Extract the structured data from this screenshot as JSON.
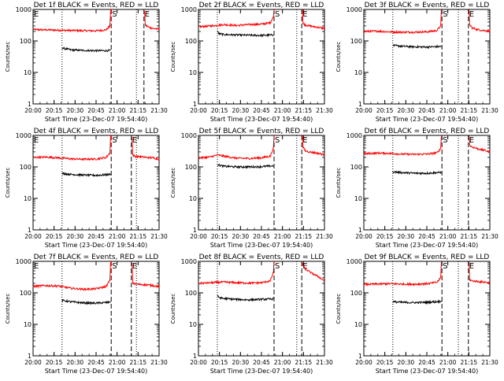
{
  "figure": {
    "axis_labels": {
      "y": "Counts/sec",
      "x": "Start Time (23-Dec-07 19:54:40)"
    },
    "colors": {
      "events": "#000000",
      "lld": "#ff0000",
      "axes": "#000000"
    },
    "legend_note": "BLACK = Events, RED = LLD",
    "markers": {
      "saa": "S",
      "eclipse": "E"
    }
  },
  "chart_data": [
    {
      "type": "line",
      "title": "Det 1f BLACK = Events, RED = LLD",
      "xlabel": "Start Time (23-Dec-07 19:54:40)",
      "ylabel": "Counts/sec",
      "scale": "log",
      "ylim": [
        1,
        1000
      ],
      "xlim_min": [
        0,
        100
      ],
      "x_ticks": [
        "20:00",
        "20:15",
        "20:30",
        "20:45",
        "21:00",
        "21:15",
        "21:30"
      ],
      "y_ticks": [
        "1",
        "10",
        "100",
        "1000"
      ],
      "dotted_lines_min": [
        23,
        82
      ],
      "dashed_lines_min": [
        62,
        88
      ],
      "letters": [
        {
          "text": "E",
          "x": 0
        },
        {
          "text": "S",
          "x": 62
        },
        {
          "text": "E",
          "x": 88
        }
      ],
      "series": [
        {
          "name": "LLD",
          "color": "#ff0000",
          "x": [
            0,
            10,
            20,
            30,
            40,
            50,
            58,
            61,
            61.5,
            62
          ],
          "y": [
            230,
            225,
            220,
            215,
            212,
            210,
            225,
            300,
            900,
            1050
          ]
        },
        {
          "name": "LLD",
          "color": "#ff0000",
          "x": [
            88.5,
            89,
            90,
            92,
            95,
            100
          ],
          "y": [
            900,
            330,
            300,
            270,
            250,
            235
          ]
        },
        {
          "name": "Events",
          "color": "#000000",
          "x": [
            23,
            30,
            40,
            50,
            60,
            61.5
          ],
          "y": [
            60,
            52,
            50,
            49,
            49,
            50
          ]
        }
      ]
    },
    {
      "type": "line",
      "title": "Det 2f BLACK = Events, RED = LLD",
      "xlabel": "Start Time (23-Dec-07 19:54:40)",
      "ylabel": "Counts/sec",
      "scale": "log",
      "ylim": [
        1,
        1000
      ],
      "xlim_min": [
        0,
        100
      ],
      "x_ticks": [
        "20:00",
        "20:15",
        "20:30",
        "20:45",
        "21:00",
        "21:15",
        "21:30"
      ],
      "y_ticks": [
        "1",
        "10",
        "100",
        "1000"
      ],
      "dotted_lines_min": [
        15,
        78
      ],
      "dashed_lines_min": [
        60,
        82
      ],
      "letters": [
        {
          "text": "S",
          "x": 60
        },
        {
          "text": "E",
          "x": 82
        }
      ],
      "series": [
        {
          "name": "LLD",
          "color": "#ff0000",
          "x": [
            0,
            10,
            20,
            30,
            40,
            50,
            57,
            59.5,
            60
          ],
          "y": [
            280,
            300,
            330,
            310,
            330,
            340,
            380,
            600,
            1050
          ]
        },
        {
          "name": "LLD",
          "color": "#ff0000",
          "x": [
            82.5,
            83,
            85,
            90,
            95,
            100
          ],
          "y": [
            1000,
            360,
            320,
            290,
            270,
            250
          ]
        },
        {
          "name": "Events",
          "color": "#000000",
          "x": [
            15,
            16,
            20,
            30,
            40,
            50,
            59.5
          ],
          "y": [
            210,
            170,
            160,
            155,
            152,
            150,
            155
          ]
        }
      ]
    },
    {
      "type": "line",
      "title": "Det 3f BLACK = Events, RED = LLD",
      "xlabel": "Start Time (23-Dec-07 19:54:40)",
      "ylabel": "Counts/sec",
      "scale": "log",
      "ylim": [
        1,
        1000
      ],
      "xlim_min": [
        0,
        100
      ],
      "x_ticks": [
        "20:00",
        "20:15",
        "20:30",
        "20:45",
        "21:00",
        "21:15",
        "21:30"
      ],
      "y_ticks": [
        "1",
        "10",
        "100",
        "1000"
      ],
      "dotted_lines_min": [
        23,
        75
      ],
      "dashed_lines_min": [
        62,
        83
      ],
      "letters": [
        {
          "text": "S",
          "x": 62
        },
        {
          "text": "E",
          "x": 83
        }
      ],
      "series": [
        {
          "name": "LLD",
          "color": "#ff0000",
          "x": [
            0,
            10,
            20,
            30,
            40,
            50,
            58,
            61,
            61.5,
            62
          ],
          "y": [
            200,
            205,
            195,
            190,
            190,
            195,
            215,
            300,
            900,
            1050
          ]
        },
        {
          "name": "LLD",
          "color": "#ff0000",
          "x": [
            83.5,
            84,
            86,
            90,
            95,
            100
          ],
          "y": [
            950,
            330,
            260,
            230,
            215,
            205
          ]
        },
        {
          "name": "Events",
          "color": "#000000",
          "x": [
            23,
            30,
            40,
            50,
            60,
            61.5
          ],
          "y": [
            72,
            68,
            65,
            64,
            66,
            68
          ]
        }
      ]
    },
    {
      "type": "line",
      "title": "Det 4f BLACK = Events, RED = LLD",
      "xlabel": "Start Time (23-Dec-07 19:54:40)",
      "ylabel": "Counts/sec",
      "scale": "log",
      "ylim": [
        1,
        1000
      ],
      "xlim_min": [
        0,
        100
      ],
      "x_ticks": [
        "20:00",
        "20:15",
        "20:30",
        "20:45",
        "21:00",
        "21:15",
        "21:30"
      ],
      "y_ticks": [
        "1",
        "10",
        "100",
        "1000"
      ],
      "dotted_lines_min": [
        23,
        82
      ],
      "dashed_lines_min": [
        62,
        78
      ],
      "letters": [
        {
          "text": "E",
          "x": 0
        },
        {
          "text": "S",
          "x": 62
        },
        {
          "text": "E",
          "x": 78
        }
      ],
      "series": [
        {
          "name": "LLD",
          "color": "#ff0000",
          "x": [
            0,
            10,
            20,
            30,
            40,
            50,
            58,
            61,
            61.5,
            62
          ],
          "y": [
            200,
            205,
            195,
            180,
            175,
            178,
            200,
            280,
            900,
            1050
          ]
        },
        {
          "name": "LLD",
          "color": "#ff0000",
          "x": [
            78.5,
            79,
            81,
            85,
            90,
            95,
            100
          ],
          "y": [
            900,
            240,
            215,
            210,
            200,
            195,
            175
          ]
        },
        {
          "name": "Events",
          "color": "#000000",
          "x": [
            23,
            30,
            40,
            50,
            60,
            61.5
          ],
          "y": [
            62,
            58,
            55,
            54,
            57,
            60
          ]
        }
      ]
    },
    {
      "type": "line",
      "title": "Det 5f BLACK = Events, RED = LLD",
      "xlabel": "Start Time (23-Dec-07 19:54:40)",
      "ylabel": "Counts/sec",
      "scale": "log",
      "ylim": [
        1,
        1000
      ],
      "xlim_min": [
        0,
        100
      ],
      "x_ticks": [
        "20:00",
        "20:15",
        "20:30",
        "20:45",
        "21:00",
        "21:15",
        "21:30"
      ],
      "y_ticks": [
        "1",
        "10",
        "100",
        "1000"
      ],
      "dotted_lines_min": [
        15,
        78
      ],
      "dashed_lines_min": [
        60,
        82
      ],
      "letters": [
        {
          "text": "S",
          "x": 60
        },
        {
          "text": "E",
          "x": 82
        }
      ],
      "series": [
        {
          "name": "LLD",
          "color": "#ff0000",
          "x": [
            0,
            10,
            15,
            20,
            30,
            40,
            50,
            57,
            59.5,
            60
          ],
          "y": [
            190,
            210,
            240,
            220,
            190,
            185,
            195,
            220,
            400,
            1050
          ]
        },
        {
          "name": "LLD",
          "color": "#ff0000",
          "x": [
            82.5,
            83,
            85,
            90,
            95,
            100
          ],
          "y": [
            1000,
            420,
            320,
            290,
            270,
            240
          ]
        },
        {
          "name": "Events",
          "color": "#000000",
          "x": [
            15,
            16,
            20,
            30,
            40,
            50,
            59.5
          ],
          "y": [
            120,
            115,
            105,
            100,
            100,
            102,
            108
          ]
        }
      ]
    },
    {
      "type": "line",
      "title": "Det 6f BLACK = Events, RED = LLD",
      "xlabel": "Start Time (23-Dec-07 19:54:40)",
      "ylabel": "Counts/sec",
      "scale": "log",
      "ylim": [
        1,
        1000
      ],
      "xlim_min": [
        0,
        100
      ],
      "x_ticks": [
        "20:00",
        "20:15",
        "20:30",
        "20:45",
        "21:00",
        "21:15",
        "21:30"
      ],
      "y_ticks": [
        "1",
        "10",
        "100",
        "1000"
      ],
      "dotted_lines_min": [
        23,
        75
      ],
      "dashed_lines_min": [
        62,
        83
      ],
      "letters": [
        {
          "text": "S",
          "x": 62
        },
        {
          "text": "E",
          "x": 83
        }
      ],
      "series": [
        {
          "name": "LLD",
          "color": "#ff0000",
          "x": [
            0,
            10,
            20,
            30,
            40,
            50,
            58,
            61,
            61.5,
            62
          ],
          "y": [
            260,
            275,
            270,
            255,
            250,
            255,
            280,
            380,
            900,
            1050
          ]
        },
        {
          "name": "LLD",
          "color": "#ff0000",
          "x": [
            83.5,
            84,
            86,
            90,
            95,
            100
          ],
          "y": [
            900,
            480,
            430,
            380,
            340,
            300
          ]
        },
        {
          "name": "Events",
          "color": "#000000",
          "x": [
            23,
            30,
            40,
            50,
            60,
            61.5
          ],
          "y": [
            70,
            66,
            63,
            63,
            66,
            68
          ]
        }
      ]
    },
    {
      "type": "line",
      "title": "Det 7f BLACK = Events, RED = LLD",
      "xlabel": "Start Time (23-Dec-07 19:54:40)",
      "ylabel": "Counts/sec",
      "scale": "log",
      "ylim": [
        1,
        1000
      ],
      "xlim_min": [
        0,
        100
      ],
      "x_ticks": [
        "20:00",
        "20:15",
        "20:30",
        "20:45",
        "21:00",
        "21:15",
        "21:30"
      ],
      "y_ticks": [
        "1",
        "10",
        "100",
        "1000"
      ],
      "dotted_lines_min": [
        23,
        82
      ],
      "dashed_lines_min": [
        62,
        78
      ],
      "letters": [
        {
          "text": "E",
          "x": 0
        },
        {
          "text": "S",
          "x": 62
        },
        {
          "text": "E",
          "x": 78
        }
      ],
      "series": [
        {
          "name": "LLD",
          "color": "#ff0000",
          "x": [
            0,
            10,
            20,
            30,
            40,
            50,
            58,
            61,
            61.5,
            62
          ],
          "y": [
            160,
            170,
            165,
            140,
            130,
            135,
            160,
            250,
            900,
            1050
          ]
        },
        {
          "name": "LLD",
          "color": "#ff0000",
          "x": [
            78.5,
            79,
            81,
            85,
            90,
            95,
            100
          ],
          "y": [
            900,
            210,
            190,
            185,
            180,
            170,
            160
          ]
        },
        {
          "name": "Events",
          "color": "#000000",
          "x": [
            23,
            30,
            40,
            50,
            60,
            61.5
          ],
          "y": [
            58,
            52,
            48,
            47,
            50,
            54
          ]
        }
      ]
    },
    {
      "type": "line",
      "title": "Det 8f BLACK = Events, RED = LLD",
      "xlabel": "Start Time (23-Dec-07 19:54:40)",
      "ylabel": "Counts/sec",
      "scale": "log",
      "ylim": [
        1,
        1000
      ],
      "xlim_min": [
        0,
        100
      ],
      "x_ticks": [
        "20:00",
        "20:15",
        "20:30",
        "20:45",
        "21:00",
        "21:15",
        "21:30"
      ],
      "y_ticks": [
        "1",
        "10",
        "100",
        "1000"
      ],
      "dotted_lines_min": [
        15,
        78
      ],
      "dashed_lines_min": [
        60,
        82
      ],
      "letters": [
        {
          "text": "S",
          "x": 60
        },
        {
          "text": "E",
          "x": 82
        }
      ],
      "series": [
        {
          "name": "LLD",
          "color": "#ff0000",
          "x": [
            0,
            10,
            20,
            30,
            40,
            50,
            57,
            59.5,
            60
          ],
          "y": [
            200,
            210,
            220,
            210,
            205,
            210,
            240,
            450,
            1050
          ]
        },
        {
          "name": "LLD",
          "color": "#ff0000",
          "x": [
            82.5,
            83,
            85,
            90,
            95,
            100
          ],
          "y": [
            900,
            720,
            560,
            420,
            330,
            240
          ]
        },
        {
          "name": "Events",
          "color": "#000000",
          "x": [
            15,
            16,
            20,
            30,
            40,
            50,
            59.5
          ],
          "y": [
            80,
            72,
            66,
            62,
            60,
            62,
            64
          ]
        }
      ]
    },
    {
      "type": "line",
      "title": "Det 9f BLACK = Events, RED = LLD",
      "xlabel": "Start Time (23-Dec-07 19:54:40)",
      "ylabel": "Counts/sec",
      "scale": "log",
      "ylim": [
        1,
        1000
      ],
      "xlim_min": [
        0,
        100
      ],
      "x_ticks": [
        "20:00",
        "20:15",
        "20:30",
        "20:45",
        "21:00",
        "21:15",
        "21:30"
      ],
      "y_ticks": [
        "1",
        "10",
        "100",
        "1000"
      ],
      "dotted_lines_min": [
        23,
        75
      ],
      "dashed_lines_min": [
        62,
        83
      ],
      "letters": [
        {
          "text": "S",
          "x": 62
        },
        {
          "text": "E",
          "x": 83
        }
      ],
      "series": [
        {
          "name": "LLD",
          "color": "#ff0000",
          "x": [
            0,
            10,
            20,
            30,
            40,
            50,
            58,
            61,
            61.5,
            62
          ],
          "y": [
            185,
            190,
            195,
            190,
            188,
            195,
            215,
            300,
            900,
            1050
          ]
        },
        {
          "name": "LLD",
          "color": "#ff0000",
          "x": [
            83.5,
            84,
            86,
            90,
            95,
            100
          ],
          "y": [
            900,
            260,
            240,
            230,
            220,
            210
          ]
        },
        {
          "name": "Events",
          "color": "#000000",
          "x": [
            23,
            30,
            40,
            50,
            60,
            61.5
          ],
          "y": [
            52,
            50,
            49,
            50,
            53,
            56
          ]
        }
      ]
    }
  ]
}
